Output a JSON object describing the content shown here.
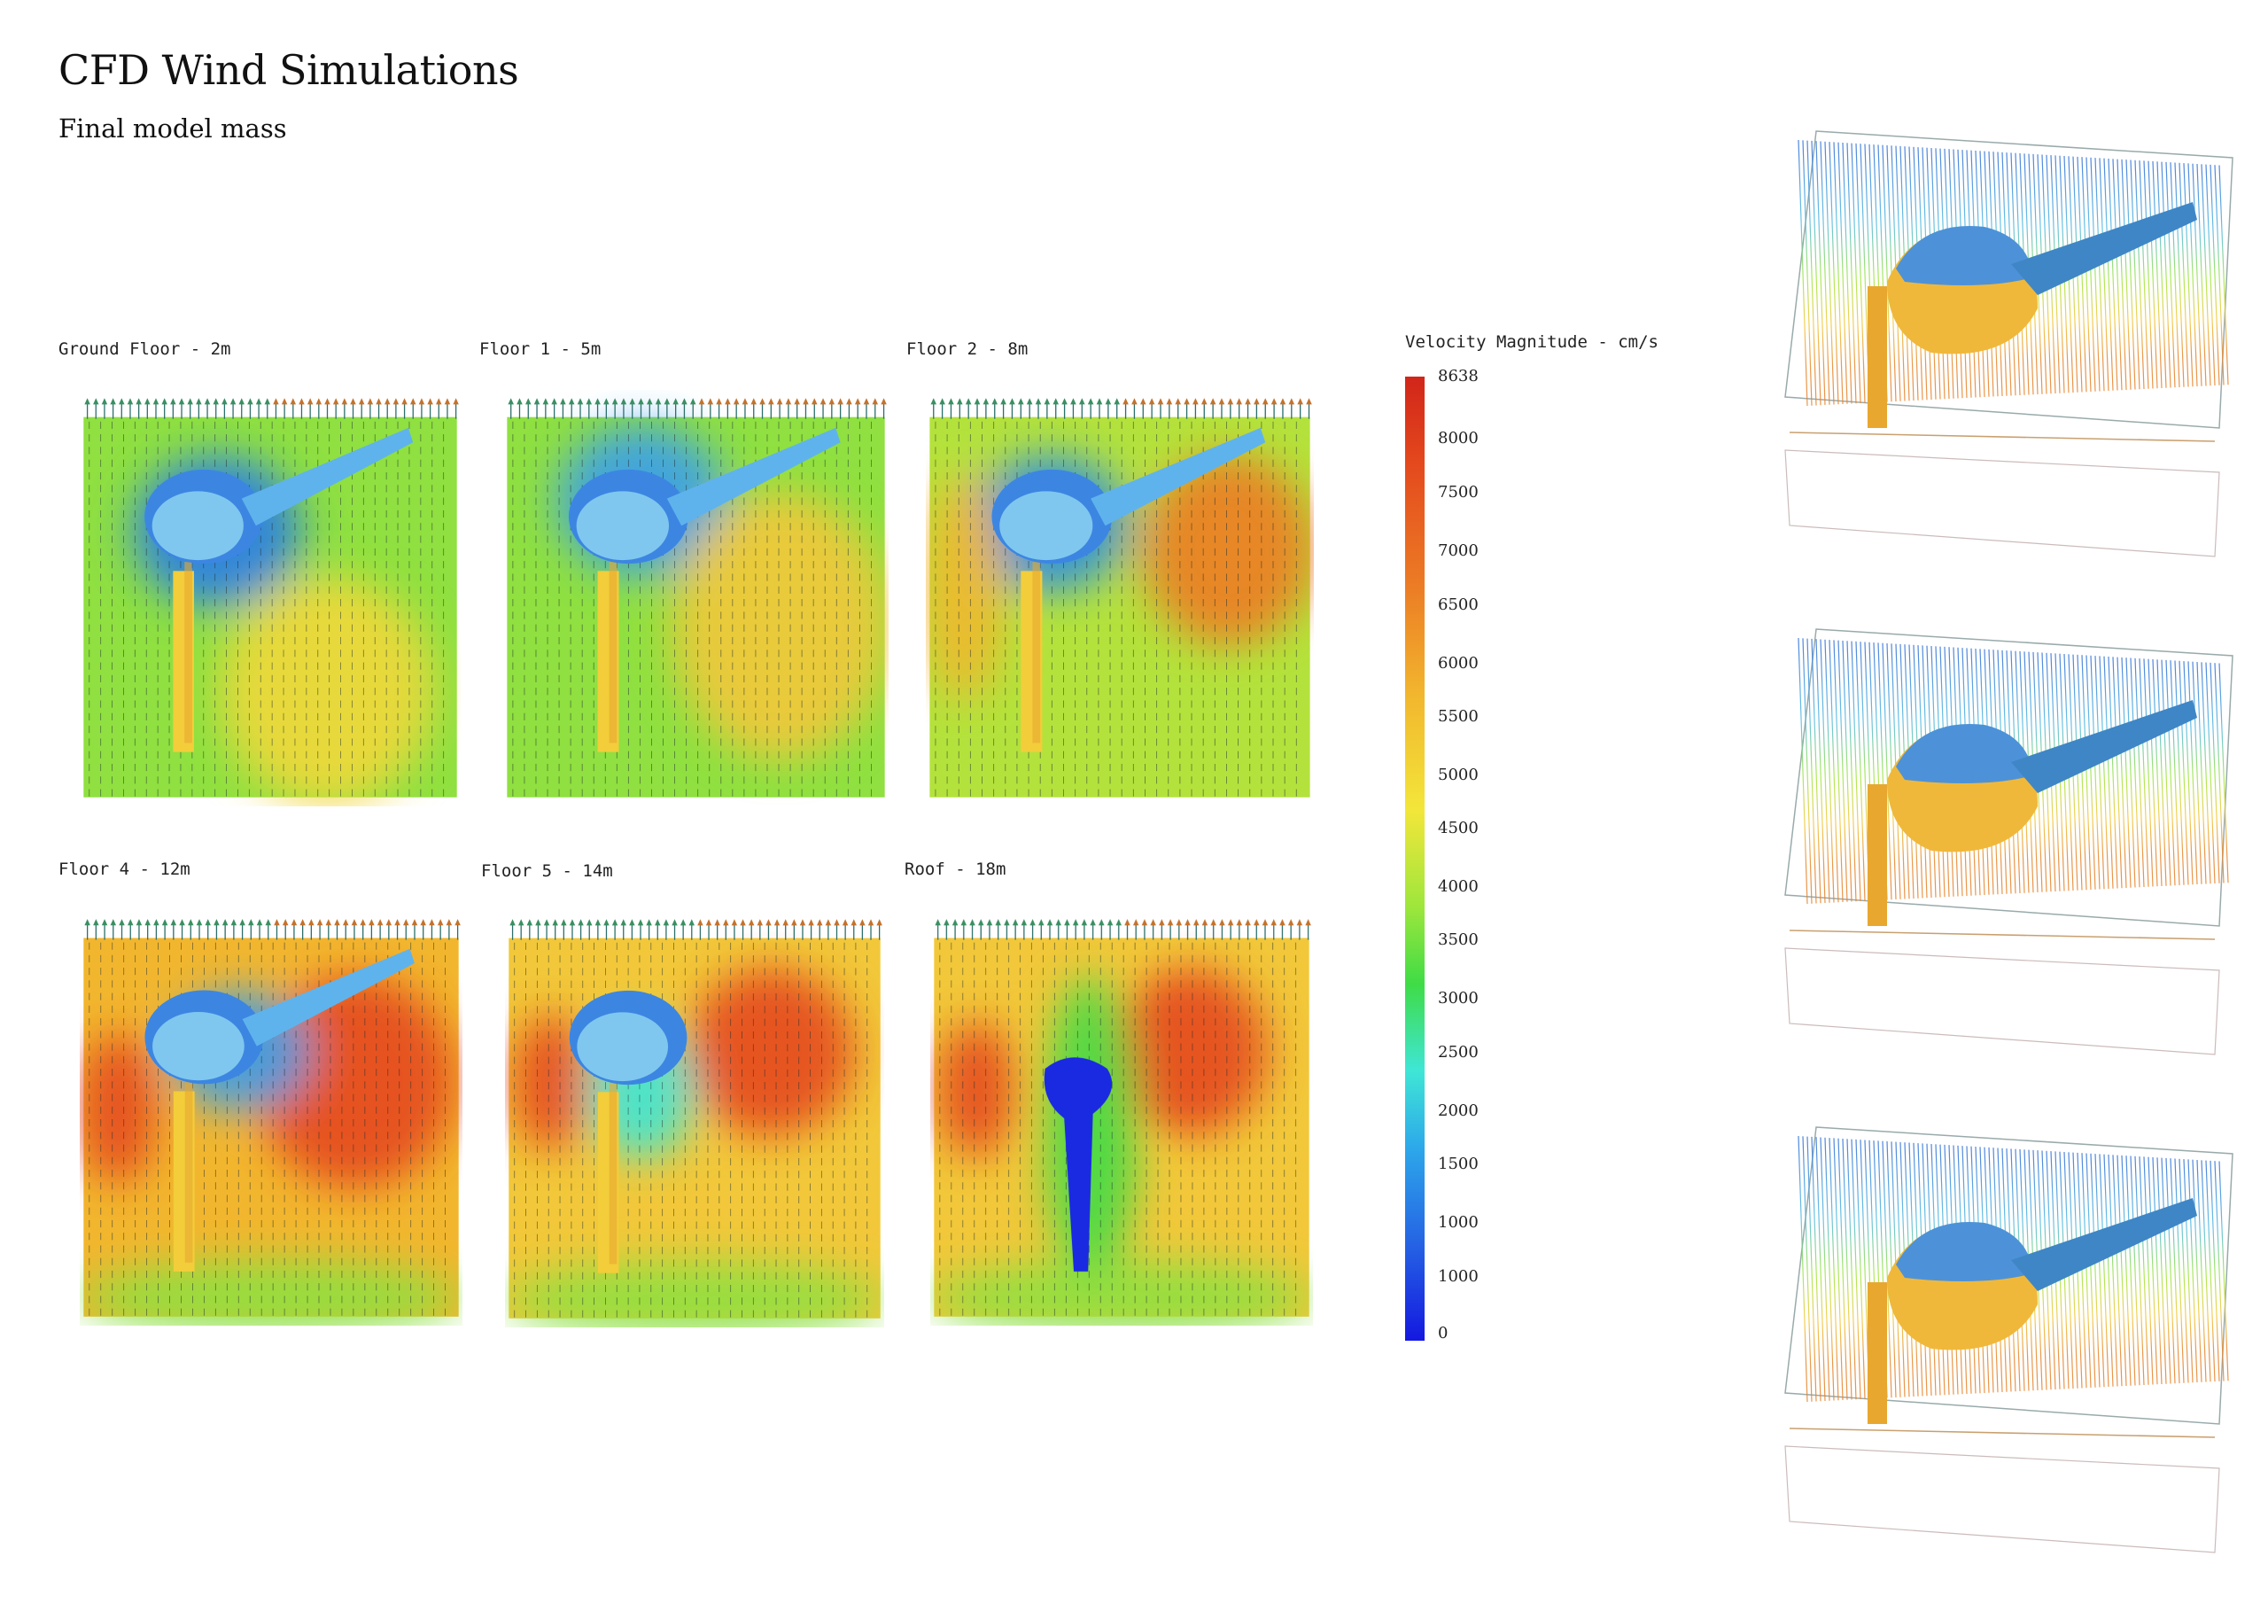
{
  "title": "CFD Wind Simulations",
  "subtitle": "Final model mass",
  "panels": [
    {
      "label": "Ground Floor - 2m"
    },
    {
      "label": "Floor 1 - 5m"
    },
    {
      "label": "Floor 2 - 8m"
    },
    {
      "label": "Floor 4 - 12m"
    },
    {
      "label": "Floor 5 - 14m"
    },
    {
      "label": "Roof - 18m"
    }
  ],
  "legend": {
    "title": "Velocity Magnitude - cm/s",
    "ticks": [
      "8638",
      "8000",
      "7500",
      "7000",
      "6500",
      "6000",
      "5500",
      "5000",
      "4500",
      "4000",
      "3500",
      "3000",
      "2500",
      "2000",
      "1500",
      "1000",
      "1000",
      "0"
    ]
  },
  "colors": {
    "low": "#1418e0",
    "mid_low": "#2da8ea",
    "mid": "#3fdc46",
    "mid_high": "#f3e63a",
    "high": "#d1251a"
  }
}
